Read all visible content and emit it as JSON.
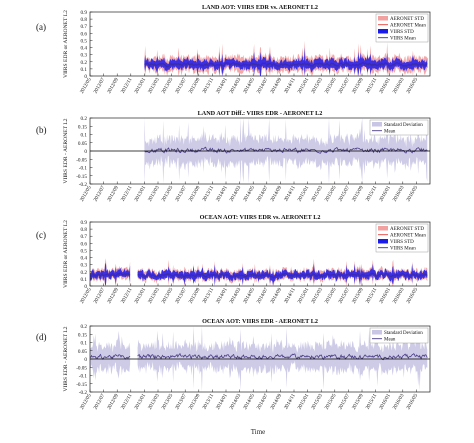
{
  "chart_data": [
    {
      "type": "area",
      "panel_label": "(a)",
      "title": "LAND AOT: VIIRS EDR vs. AERONET L2",
      "ylabel": "VIIRS EDR or AERONET L2",
      "xlabel": "",
      "ylim": [
        0,
        0.9
      ],
      "yticks": [
        0,
        0.1,
        0.2,
        0.3,
        0.4,
        0.5,
        0.6,
        0.7,
        0.8,
        0.9
      ],
      "x_ticks": [
        "2012/05",
        "2012/07",
        "2012/09",
        "2012/11",
        "2013/01",
        "2013/03",
        "2013/05",
        "2013/07",
        "2013/09",
        "2013/11",
        "2014/01",
        "2014/03",
        "2014/05",
        "2014/07",
        "2014/09",
        "2014/11",
        "2015/01",
        "2015/03",
        "2015/05",
        "2015/07",
        "2015/09",
        "2015/11",
        "2016/01",
        "2016/03",
        "2016/05"
      ],
      "legend": "top-right",
      "grid": false,
      "series": [
        {
          "name": "AERONET STD",
          "kind": "band",
          "color": "#f2a0a0",
          "baseline": 0.16,
          "spread": 0.1
        },
        {
          "name": "AERONET Mean",
          "kind": "line",
          "color": "#e8403c",
          "baseline": 0.16
        },
        {
          "name": "VIIRS STD",
          "kind": "band",
          "color": "#1b1bea",
          "baseline": 0.16,
          "spread": 0.06
        },
        {
          "name": "VIIRS Mean",
          "kind": "line",
          "color": "#3b2f9f",
          "baseline": 0.16
        }
      ],
      "data_start": "2013/01",
      "data_gaps": []
    },
    {
      "type": "area",
      "panel_label": "(b)",
      "title": "LAND AOT Diff.: VIIRS EDR - AERONET L2",
      "ylabel": "VIIRS EDR - AERONET L2",
      "xlabel": "",
      "ylim": [
        -0.2,
        0.2
      ],
      "yticks": [
        -0.2,
        -0.15,
        -0.1,
        -0.05,
        0,
        0.05,
        0.1,
        0.15,
        0.2
      ],
      "x_ticks": [
        "2012/05",
        "2012/07",
        "2012/09",
        "2012/11",
        "2013/01",
        "2013/03",
        "2013/05",
        "2013/07",
        "2013/09",
        "2013/11",
        "2014/01",
        "2014/03",
        "2014/05",
        "2014/07",
        "2014/09",
        "2014/11",
        "2015/01",
        "2015/03",
        "2015/05",
        "2015/07",
        "2015/09",
        "2015/11",
        "2016/01",
        "2016/03",
        "2016/05"
      ],
      "legend": "top-right",
      "grid": false,
      "series": [
        {
          "name": "Standard Deviation",
          "kind": "band",
          "color": "#c9c5e4",
          "baseline": 0.0,
          "spread": 0.07
        },
        {
          "name": "Mean",
          "kind": "line",
          "color": "#4b3e87",
          "baseline": 0.0
        }
      ],
      "data_start": "2013/01",
      "data_gaps": []
    },
    {
      "type": "area",
      "panel_label": "(c)",
      "title": "OCEAN AOT: VIIRS EDR vs. AERONET L2",
      "ylabel": "VIIRS EDR or AERONET L2",
      "xlabel": "",
      "ylim": [
        0,
        0.9
      ],
      "yticks": [
        0,
        0.1,
        0.2,
        0.3,
        0.4,
        0.5,
        0.6,
        0.7,
        0.8,
        0.9
      ],
      "x_ticks": [
        "2012/05",
        "2012/07",
        "2012/09",
        "2012/11",
        "2013/01",
        "2013/03",
        "2013/05",
        "2013/07",
        "2013/09",
        "2013/11",
        "2014/01",
        "2014/03",
        "2014/05",
        "2014/07",
        "2014/09",
        "2014/11",
        "2015/01",
        "2015/03",
        "2015/05",
        "2015/07",
        "2015/09",
        "2015/11",
        "2016/01",
        "2016/03",
        "2016/05"
      ],
      "legend": "top-right",
      "grid": false,
      "series": [
        {
          "name": "AERONET STD",
          "kind": "band",
          "color": "#f2a0a0",
          "baseline": 0.15,
          "spread": 0.07
        },
        {
          "name": "AERONET Mean",
          "kind": "line",
          "color": "#e8403c",
          "baseline": 0.15
        },
        {
          "name": "VIIRS STD",
          "kind": "band",
          "color": "#1b1bea",
          "baseline": 0.15,
          "spread": 0.05
        },
        {
          "name": "VIIRS Mean",
          "kind": "line",
          "color": "#3b2f9f",
          "baseline": 0.15
        }
      ],
      "data_start": "2012/05",
      "data_gaps": [
        [
          "2012/11",
          "2012/12"
        ]
      ]
    },
    {
      "type": "area",
      "panel_label": "(d)",
      "title": "OCEAN AOT: VIIRS EDR - AERONET L2",
      "ylabel": "VIIRS EDR - AERONET L2",
      "xlabel": "Time",
      "ylim": [
        -0.2,
        0.2
      ],
      "yticks": [
        -0.2,
        -0.15,
        -0.1,
        -0.05,
        0,
        0.05,
        0.1,
        0.15,
        0.2
      ],
      "x_ticks": [
        "2012/05",
        "2012/07",
        "2012/09",
        "2012/11",
        "2013/01",
        "2013/03",
        "2013/05",
        "2013/07",
        "2013/09",
        "2013/11",
        "2014/01",
        "2014/03",
        "2014/05",
        "2014/07",
        "2014/09",
        "2014/11",
        "2015/01",
        "2015/03",
        "2015/05",
        "2015/07",
        "2015/09",
        "2015/11",
        "2016/01",
        "2016/03",
        "2016/05"
      ],
      "legend": "top-right",
      "grid": false,
      "series": [
        {
          "name": "Standard Deviation",
          "kind": "band",
          "color": "#c9c5e4",
          "baseline": 0.01,
          "spread": 0.07
        },
        {
          "name": "Mean",
          "kind": "line",
          "color": "#4b3e87",
          "baseline": 0.01
        }
      ],
      "data_start": "2012/05",
      "data_gaps": [
        [
          "2012/11",
          "2012/12"
        ]
      ]
    }
  ]
}
